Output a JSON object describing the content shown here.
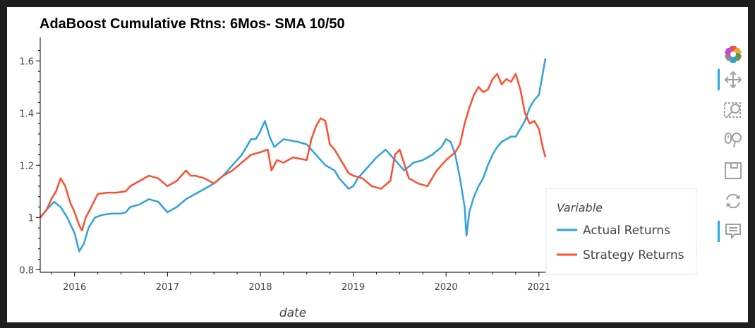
{
  "chart_data": {
    "type": "line",
    "title": "AdaBoost Cumulative Rtns: 6Mos- SMA 10/50",
    "xlabel": "date",
    "ylabel": "",
    "xlim": [
      2015.63,
      2021.07
    ],
    "ylim": [
      0.79,
      1.69
    ],
    "xticks": [
      2016,
      2017,
      2018,
      2019,
      2020,
      2021
    ],
    "xtick_labels": [
      "2016",
      "2017",
      "2018",
      "2019",
      "2020",
      "2021"
    ],
    "yticks": [
      0.8,
      1.0,
      1.2,
      1.4,
      1.6
    ],
    "ytick_labels": [
      "0.8",
      "1",
      "1.2",
      "1.4",
      "1.6"
    ],
    "grid": false,
    "legend": {
      "title": "Variable",
      "placement": "right"
    },
    "series": [
      {
        "name": "Actual Returns",
        "color": "#30a2da",
        "points": [
          [
            2015.63,
            1.0
          ],
          [
            2015.7,
            1.03
          ],
          [
            2015.78,
            1.06
          ],
          [
            2015.85,
            1.04
          ],
          [
            2015.92,
            1.0
          ],
          [
            2016.0,
            0.94
          ],
          [
            2016.05,
            0.87
          ],
          [
            2016.1,
            0.9
          ],
          [
            2016.15,
            0.96
          ],
          [
            2016.22,
            1.0
          ],
          [
            2016.3,
            1.01
          ],
          [
            2016.4,
            1.015
          ],
          [
            2016.5,
            1.015
          ],
          [
            2016.55,
            1.02
          ],
          [
            2016.6,
            1.04
          ],
          [
            2016.7,
            1.05
          ],
          [
            2016.8,
            1.07
          ],
          [
            2016.9,
            1.06
          ],
          [
            2016.95,
            1.04
          ],
          [
            2017.0,
            1.02
          ],
          [
            2017.1,
            1.04
          ],
          [
            2017.2,
            1.07
          ],
          [
            2017.3,
            1.09
          ],
          [
            2017.4,
            1.11
          ],
          [
            2017.5,
            1.13
          ],
          [
            2017.6,
            1.16
          ],
          [
            2017.7,
            1.2
          ],
          [
            2017.8,
            1.24
          ],
          [
            2017.9,
            1.3
          ],
          [
            2017.95,
            1.3
          ],
          [
            2018.0,
            1.33
          ],
          [
            2018.05,
            1.37
          ],
          [
            2018.1,
            1.31
          ],
          [
            2018.15,
            1.27
          ],
          [
            2018.25,
            1.3
          ],
          [
            2018.4,
            1.29
          ],
          [
            2018.5,
            1.28
          ],
          [
            2018.6,
            1.24
          ],
          [
            2018.7,
            1.2
          ],
          [
            2018.8,
            1.18
          ],
          [
            2018.85,
            1.15
          ],
          [
            2018.95,
            1.11
          ],
          [
            2019.0,
            1.12
          ],
          [
            2019.05,
            1.15
          ],
          [
            2019.15,
            1.19
          ],
          [
            2019.25,
            1.23
          ],
          [
            2019.35,
            1.26
          ],
          [
            2019.45,
            1.22
          ],
          [
            2019.55,
            1.18
          ],
          [
            2019.65,
            1.21
          ],
          [
            2019.75,
            1.22
          ],
          [
            2019.85,
            1.24
          ],
          [
            2019.95,
            1.27
          ],
          [
            2020.0,
            1.3
          ],
          [
            2020.05,
            1.29
          ],
          [
            2020.1,
            1.24
          ],
          [
            2020.15,
            1.15
          ],
          [
            2020.2,
            1.04
          ],
          [
            2020.22,
            0.93
          ],
          [
            2020.25,
            1.02
          ],
          [
            2020.3,
            1.08
          ],
          [
            2020.35,
            1.12
          ],
          [
            2020.4,
            1.15
          ],
          [
            2020.45,
            1.2
          ],
          [
            2020.5,
            1.24
          ],
          [
            2020.55,
            1.27
          ],
          [
            2020.6,
            1.29
          ],
          [
            2020.7,
            1.31
          ],
          [
            2020.75,
            1.31
          ],
          [
            2020.8,
            1.34
          ],
          [
            2020.85,
            1.37
          ],
          [
            2020.9,
            1.42
          ],
          [
            2020.95,
            1.45
          ],
          [
            2021.0,
            1.47
          ],
          [
            2021.04,
            1.55
          ],
          [
            2021.07,
            1.61
          ]
        ]
      },
      {
        "name": "Strategy Returns",
        "color": "#fc4f30",
        "points": [
          [
            2015.63,
            1.0
          ],
          [
            2015.7,
            1.03
          ],
          [
            2015.75,
            1.07
          ],
          [
            2015.8,
            1.1
          ],
          [
            2015.85,
            1.15
          ],
          [
            2015.9,
            1.12
          ],
          [
            2015.95,
            1.06
          ],
          [
            2016.0,
            1.02
          ],
          [
            2016.05,
            0.97
          ],
          [
            2016.08,
            0.95
          ],
          [
            2016.12,
            1.0
          ],
          [
            2016.18,
            1.04
          ],
          [
            2016.25,
            1.09
          ],
          [
            2016.35,
            1.095
          ],
          [
            2016.45,
            1.095
          ],
          [
            2016.55,
            1.1
          ],
          [
            2016.6,
            1.12
          ],
          [
            2016.7,
            1.14
          ],
          [
            2016.8,
            1.16
          ],
          [
            2016.9,
            1.15
          ],
          [
            2017.0,
            1.12
          ],
          [
            2017.1,
            1.14
          ],
          [
            2017.2,
            1.18
          ],
          [
            2017.25,
            1.16
          ],
          [
            2017.3,
            1.16
          ],
          [
            2017.4,
            1.15
          ],
          [
            2017.5,
            1.13
          ],
          [
            2017.6,
            1.16
          ],
          [
            2017.7,
            1.18
          ],
          [
            2017.8,
            1.21
          ],
          [
            2017.9,
            1.24
          ],
          [
            2018.0,
            1.25
          ],
          [
            2018.08,
            1.26
          ],
          [
            2018.12,
            1.18
          ],
          [
            2018.18,
            1.22
          ],
          [
            2018.25,
            1.21
          ],
          [
            2018.35,
            1.23
          ],
          [
            2018.5,
            1.22
          ],
          [
            2018.55,
            1.3
          ],
          [
            2018.6,
            1.35
          ],
          [
            2018.65,
            1.38
          ],
          [
            2018.7,
            1.37
          ],
          [
            2018.75,
            1.28
          ],
          [
            2018.8,
            1.26
          ],
          [
            2018.85,
            1.23
          ],
          [
            2018.95,
            1.17
          ],
          [
            2019.0,
            1.16
          ],
          [
            2019.1,
            1.15
          ],
          [
            2019.2,
            1.12
          ],
          [
            2019.3,
            1.11
          ],
          [
            2019.4,
            1.14
          ],
          [
            2019.45,
            1.24
          ],
          [
            2019.5,
            1.26
          ],
          [
            2019.6,
            1.15
          ],
          [
            2019.7,
            1.13
          ],
          [
            2019.8,
            1.12
          ],
          [
            2019.9,
            1.18
          ],
          [
            2020.0,
            1.22
          ],
          [
            2020.1,
            1.25
          ],
          [
            2020.15,
            1.28
          ],
          [
            2020.2,
            1.36
          ],
          [
            2020.25,
            1.42
          ],
          [
            2020.3,
            1.47
          ],
          [
            2020.35,
            1.5
          ],
          [
            2020.4,
            1.48
          ],
          [
            2020.45,
            1.49
          ],
          [
            2020.5,
            1.53
          ],
          [
            2020.55,
            1.55
          ],
          [
            2020.6,
            1.51
          ],
          [
            2020.65,
            1.53
          ],
          [
            2020.7,
            1.52
          ],
          [
            2020.75,
            1.55
          ],
          [
            2020.8,
            1.49
          ],
          [
            2020.85,
            1.4
          ],
          [
            2020.9,
            1.36
          ],
          [
            2020.95,
            1.37
          ],
          [
            2021.0,
            1.34
          ],
          [
            2021.04,
            1.27
          ],
          [
            2021.07,
            1.23
          ]
        ]
      }
    ]
  },
  "toolbar": {
    "accent_color": "#26aae1",
    "tools": [
      {
        "icon": "bokeh-logo-icon",
        "active": false
      },
      {
        "icon": "pan-icon",
        "active": true
      },
      {
        "icon": "box-zoom-icon",
        "active": false
      },
      {
        "icon": "wheel-zoom-icon",
        "active": false
      },
      {
        "icon": "save-icon",
        "active": false
      },
      {
        "icon": "reset-icon",
        "active": false
      },
      {
        "icon": "hover-icon",
        "active": true
      }
    ]
  }
}
